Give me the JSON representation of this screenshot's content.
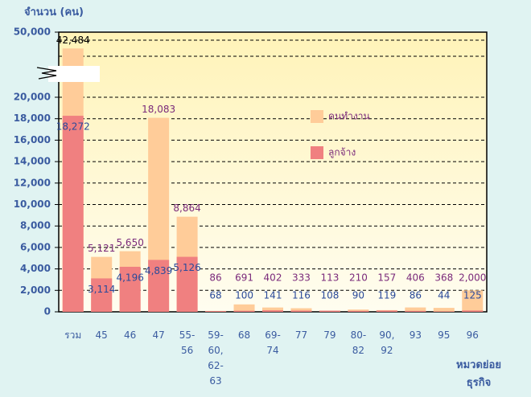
{
  "chart_data": {
    "type": "bar",
    "y_axis_label": "จำนวน (คน)",
    "x_axis_label": "หมวดย่อย ธุรกิจ",
    "categories": [
      "รวม",
      "45",
      "46",
      "47",
      "55-56",
      "59-60, 62-63",
      "68",
      "69-74",
      "77",
      "79",
      "80-82",
      "90, 92",
      "93",
      "95",
      "96"
    ],
    "series": [
      {
        "name": "คนทำงาน",
        "color": "#ffcc99",
        "values": [
          42484,
          5121,
          5650,
          18083,
          8864,
          86,
          691,
          402,
          333,
          113,
          210,
          157,
          406,
          368,
          2000
        ],
        "value_labels": [
          "42,484",
          "5,121",
          "5,650",
          "18,083",
          "8,864",
          "86",
          "691",
          "402",
          "333",
          "113",
          "210",
          "157",
          "406",
          "368",
          "2,000"
        ]
      },
      {
        "name": "ลูกจ้าง",
        "color": "#f08080",
        "values": [
          18272,
          3114,
          4196,
          4839,
          5126,
          68,
          100,
          141,
          116,
          108,
          90,
          119,
          86,
          44,
          125
        ],
        "value_labels": [
          "18,272",
          "3,114",
          "4,196",
          "4,839",
          "5,126",
          "68",
          "100",
          "141",
          "116",
          "108",
          "90",
          "119",
          "86",
          "44",
          "125"
        ]
      }
    ],
    "ylim": [
      0,
      50000
    ],
    "yticks": [
      0,
      {
        "value": 2000,
        "label": "2,000"
      },
      {
        "value": 4000,
        "label": "4,000"
      },
      {
        "value": 6000,
        "label": "6,000"
      },
      {
        "value": 8000,
        "label": "8,000"
      },
      {
        "value": 10000,
        "label": "10,000"
      },
      {
        "value": 12000,
        "label": "12,000"
      },
      {
        "value": 14000,
        "label": "14,000"
      },
      {
        "value": 16000,
        "label": "16,000"
      },
      {
        "value": 18000,
        "label": "18,000"
      },
      {
        "value": 20000,
        "label": "20,000"
      },
      {
        "value": 50000,
        "label": "50,000"
      }
    ],
    "axis_break": true,
    "grid": true,
    "legend": "right",
    "overlap": true
  }
}
